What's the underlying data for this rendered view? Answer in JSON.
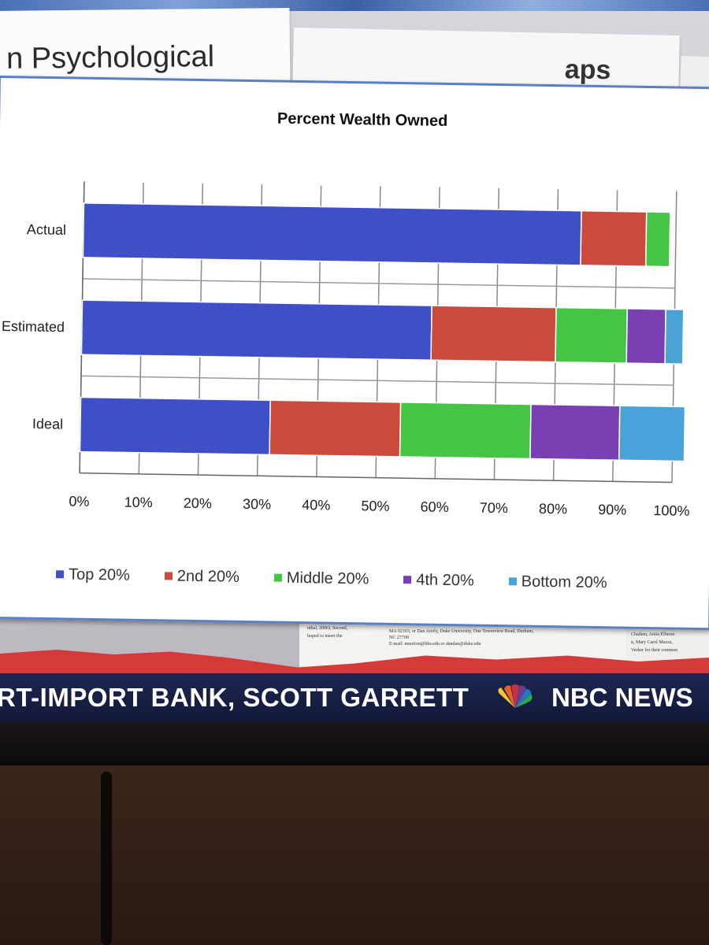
{
  "background": {
    "paper_heading": "n Psychological",
    "paper_logo": "aps",
    "paper_snippets": [
      "nthal, 2006). Second,",
      "hoped to insert the",
      "MA 02163, or Dan Ariely, Duke University, One Towerview Road, Durham,",
      "NC 27708",
      "E-mail: mnorton@hbs.edu or dandan@duke.edu",
      "Chaiken, Anita Elberse",
      "n, Mary Carol Mazza,",
      "Verker for their commen"
    ]
  },
  "ticker": {
    "headline": "RT-IMPORT BANK, SCOTT GARRETT",
    "network": "NBC NEWS"
  },
  "chart_data": {
    "type": "bar",
    "orientation": "horizontal",
    "stacked": true,
    "title": "Percent Wealth Owned",
    "categories": [
      "Actual",
      "Estimated",
      "Ideal"
    ],
    "xlim": [
      0,
      100
    ],
    "xticks": [
      "0%",
      "10%",
      "20%",
      "30%",
      "40%",
      "50%",
      "60%",
      "70%",
      "80%",
      "90%",
      "100%"
    ],
    "legend_position": "bottom",
    "series": [
      {
        "name": "Top 20%",
        "color": "#3e4fc8",
        "values": [
          84,
          59,
          32
        ]
      },
      {
        "name": "2nd 20%",
        "color": "#cc4a3c",
        "values": [
          11,
          21,
          22
        ]
      },
      {
        "name": "Middle 20%",
        "color": "#45c445",
        "values": [
          4,
          12,
          22
        ]
      },
      {
        "name": "4th 20%",
        "color": "#7a3fb2",
        "values": [
          0.2,
          6.5,
          15
        ]
      },
      {
        "name": "Bottom 20%",
        "color": "#47a3d8",
        "values": [
          0.1,
          3,
          11
        ]
      }
    ]
  }
}
